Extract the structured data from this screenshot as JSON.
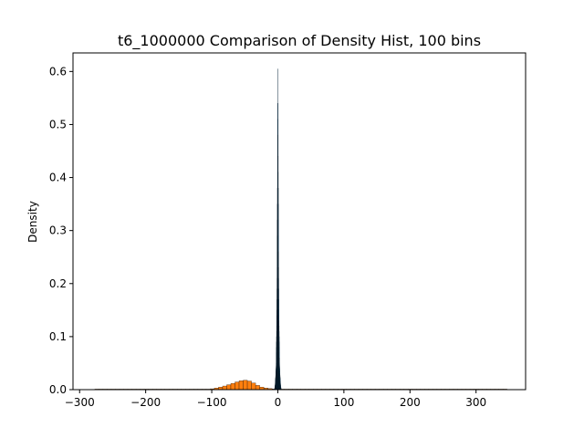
{
  "chart_data": {
    "type": "bar",
    "title": "t6_1000000 Comparison of Density Hist, 100 bins",
    "xlabel": "",
    "ylabel": "Density",
    "xlim": [
      -310,
      375
    ],
    "ylim": [
      0,
      0.635
    ],
    "xticks": [
      -300,
      -200,
      -100,
      0,
      100,
      200,
      300
    ],
    "yticks": [
      0.0,
      0.1,
      0.2,
      0.3,
      0.4,
      0.5,
      0.6
    ],
    "xtick_labels": [
      "−300",
      "−200",
      "−100",
      "0",
      "100",
      "200",
      "300"
    ],
    "ytick_labels": [
      "0.0",
      "0.1",
      "0.2",
      "0.3",
      "0.4",
      "0.5",
      "0.6"
    ],
    "grid": false,
    "series": [
      {
        "color": "#ff7f0e",
        "bin_start": -277,
        "bin_width": 6.24,
        "values": [
          5e-05,
          5e-05,
          5e-05,
          5e-05,
          5e-05,
          5e-05,
          5e-05,
          5e-05,
          5e-05,
          5e-05,
          5e-05,
          5e-05,
          5e-05,
          5e-05,
          5e-05,
          5e-05,
          5e-05,
          5e-05,
          5e-05,
          5e-05,
          5e-05,
          5e-05,
          5e-05,
          5e-05,
          0.0001,
          0.0002,
          0.0004,
          0.0008,
          0.0016,
          0.003,
          0.0048,
          0.0068,
          0.0092,
          0.0118,
          0.0145,
          0.0168,
          0.0178,
          0.0162,
          0.0125,
          0.008,
          0.0048,
          0.003,
          0.002,
          0.0012,
          0.0008,
          0.0005,
          0.0003,
          0.0002,
          0.0001,
          8e-05,
          5e-05,
          5e-05,
          5e-05,
          5e-05,
          5e-05,
          5e-05,
          5e-05,
          5e-05,
          5e-05,
          5e-05,
          5e-05,
          5e-05,
          5e-05,
          5e-05,
          5e-05,
          5e-05,
          5e-05,
          5e-05,
          5e-05,
          5e-05,
          5e-05,
          5e-05,
          5e-05,
          5e-05,
          5e-05,
          5e-05,
          5e-05,
          5e-05,
          5e-05,
          5e-05,
          5e-05,
          5e-05,
          5e-05,
          5e-05,
          5e-05,
          5e-05,
          5e-05,
          5e-05,
          5e-05,
          5e-05,
          5e-05,
          5e-05,
          5e-05,
          5e-05,
          5e-05,
          5e-05,
          5e-05,
          5e-05,
          5e-05,
          5e-05
        ]
      },
      {
        "color": "#1f77b4",
        "bin_start": -5,
        "bin_width": 0.1,
        "values": [
          0.001,
          0.002,
          0.003,
          0.004,
          0.005,
          0.006,
          0.007,
          0.008,
          0.009,
          0.011,
          0.013,
          0.015,
          0.017,
          0.019,
          0.021,
          0.023,
          0.025,
          0.027,
          0.03,
          0.033,
          0.036,
          0.039,
          0.042,
          0.045,
          0.05,
          0.06,
          0.07,
          0.08,
          0.09,
          0.1,
          0.11,
          0.12,
          0.13,
          0.14,
          0.15,
          0.17,
          0.19,
          0.21,
          0.23,
          0.26,
          0.29,
          0.32,
          0.35,
          0.38,
          0.41,
          0.44,
          0.48,
          0.51,
          0.54,
          0.605,
          0.54,
          0.51,
          0.48,
          0.44,
          0.41,
          0.38,
          0.35,
          0.32,
          0.29,
          0.26,
          0.23,
          0.21,
          0.19,
          0.17,
          0.15,
          0.14,
          0.13,
          0.12,
          0.11,
          0.1,
          0.09,
          0.08,
          0.07,
          0.06,
          0.05,
          0.045,
          0.042,
          0.039,
          0.036,
          0.033,
          0.03,
          0.027,
          0.025,
          0.023,
          0.021,
          0.019,
          0.017,
          0.015,
          0.013,
          0.011,
          0.009,
          0.008,
          0.007,
          0.006,
          0.005,
          0.004,
          0.003,
          0.002,
          0.001,
          0.001
        ]
      }
    ]
  }
}
